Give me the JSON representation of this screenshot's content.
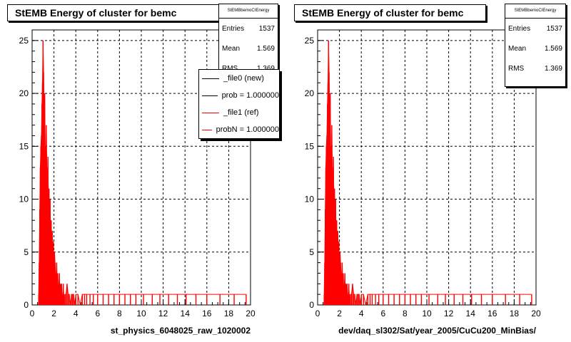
{
  "panels": [
    {
      "title": "StEMB Energy of cluster for bemc",
      "xlabel": "st_physics_6048025_raw_1020002",
      "stats": {
        "name": "StEMBbemoCIEnergy",
        "rows": [
          {
            "label": "Entries",
            "value": "1537"
          },
          {
            "label": "Mean",
            "value": "1.569"
          },
          {
            "label": "RMS",
            "value": "1.369"
          }
        ]
      },
      "legend": [
        {
          "label": "_file0 (new)",
          "color": "#000000"
        },
        {
          "label": "prob = 1.000000",
          "color": "#000000"
        },
        {
          "label": "_file1 (ref)",
          "color": "#ff0000"
        },
        {
          "label": "probN = 1.000000",
          "color": "#ff0000"
        }
      ]
    },
    {
      "title": "StEMB Energy of cluster for bemc",
      "xlabel": "dev/daq_sl302/Sat/year_2005/CuCu200_MinBias/",
      "stats": {
        "name": "StEMBbemoCIEnergy",
        "rows": [
          {
            "label": "Entries",
            "value": "1537"
          },
          {
            "label": "Mean",
            "value": "1.569"
          },
          {
            "label": "RMS",
            "value": "1.369"
          }
        ]
      }
    }
  ],
  "chart_data": [
    {
      "type": "histogram",
      "title": "StEMB Energy of cluster for bemc",
      "xlabel": "st_physics_6048025_raw_1020002",
      "ylabel": "",
      "xlim": [
        0,
        20
      ],
      "ylim": [
        0,
        26
      ],
      "xticks": [
        0,
        2,
        4,
        6,
        8,
        10,
        12,
        14,
        16,
        18,
        20
      ],
      "yticks": [
        0,
        5,
        10,
        15,
        20,
        25
      ],
      "grid": true,
      "line_color": "#ff0000",
      "series": [
        {
          "name": "_file0 (new)",
          "color": "#000000"
        },
        {
          "name": "_file1 (ref)",
          "color": "#ff0000",
          "x": [
            0.6,
            0.65,
            0.7,
            0.75,
            0.8,
            0.85,
            0.9,
            0.95,
            1.0,
            1.05,
            1.1,
            1.15,
            1.2,
            1.25,
            1.3,
            1.35,
            1.4,
            1.45,
            1.5,
            1.55,
            1.6,
            1.65,
            1.7,
            1.75,
            1.8,
            1.85,
            1.9,
            1.95,
            2.0,
            2.05,
            2.1,
            2.15,
            2.2,
            2.25,
            2.3,
            2.35,
            2.4,
            2.45,
            2.5,
            2.55,
            2.6,
            2.65,
            2.7,
            2.75,
            2.8,
            2.85,
            2.9,
            2.95,
            3.0,
            3.1,
            3.2,
            3.3,
            3.4,
            3.5,
            3.6,
            3.7,
            3.8,
            3.9,
            4.0,
            4.2,
            4.4,
            4.6,
            4.8,
            5.0,
            5.3,
            5.6,
            6.0,
            6.5,
            7.0,
            7.5,
            8.0,
            8.5,
            9.0,
            9.5,
            10.2,
            11.0,
            11.7,
            12.5,
            13.3,
            14.1,
            15.0,
            16.0,
            17.2,
            18.5,
            19.6
          ],
          "y": [
            1,
            4,
            9,
            13,
            15,
            16,
            19,
            21,
            25,
            22,
            18,
            20,
            15,
            12,
            17,
            13,
            10,
            14,
            9,
            11,
            7,
            10,
            6,
            8,
            5,
            7,
            4,
            6,
            3,
            5,
            4,
            3,
            2,
            4,
            2,
            3,
            1,
            2,
            3,
            1,
            2,
            1,
            2,
            0,
            1,
            2,
            1,
            0,
            1,
            1,
            2,
            1,
            1,
            0,
            1,
            1,
            1,
            0,
            1,
            1,
            0,
            1,
            1,
            1,
            1,
            1,
            1,
            1,
            1,
            1,
            1,
            1,
            1,
            1,
            1,
            1,
            1,
            1,
            1,
            1,
            1,
            1,
            1,
            1,
            1
          ]
        }
      ]
    },
    {
      "type": "histogram",
      "title": "StEMB Energy of cluster for bemc",
      "xlabel": "dev/daq_sl302/Sat/year_2005/CuCu200_MinBias/",
      "ylabel": "",
      "xlim": [
        0,
        20
      ],
      "ylim": [
        0,
        26
      ],
      "xticks": [
        0,
        2,
        4,
        6,
        8,
        10,
        12,
        14,
        16,
        18,
        20
      ],
      "yticks": [
        0,
        5,
        10,
        15,
        20,
        25
      ],
      "grid": true,
      "line_color": "#ff0000",
      "series": [
        {
          "name": "",
          "color": "#ff0000",
          "x": [
            0.6,
            0.65,
            0.7,
            0.75,
            0.8,
            0.85,
            0.9,
            0.95,
            1.0,
            1.05,
            1.1,
            1.15,
            1.2,
            1.25,
            1.3,
            1.35,
            1.4,
            1.45,
            1.5,
            1.55,
            1.6,
            1.65,
            1.7,
            1.75,
            1.8,
            1.85,
            1.9,
            1.95,
            2.0,
            2.05,
            2.1,
            2.15,
            2.2,
            2.25,
            2.3,
            2.35,
            2.4,
            2.45,
            2.5,
            2.55,
            2.6,
            2.65,
            2.7,
            2.75,
            2.8,
            2.85,
            2.9,
            2.95,
            3.0,
            3.1,
            3.2,
            3.3,
            3.4,
            3.5,
            3.6,
            3.7,
            3.8,
            3.9,
            4.0,
            4.2,
            4.4,
            4.6,
            4.8,
            5.0,
            5.3,
            5.6,
            6.0,
            6.5,
            7.0,
            7.5,
            8.0,
            8.5,
            9.0,
            9.5,
            10.2,
            11.0,
            11.7,
            12.5,
            13.3,
            14.1,
            15.0,
            16.0,
            17.2,
            18.5,
            19.6
          ],
          "y": [
            1,
            4,
            9,
            13,
            15,
            16,
            19,
            21,
            25,
            22,
            18,
            20,
            15,
            12,
            17,
            13,
            10,
            14,
            9,
            11,
            7,
            10,
            6,
            8,
            5,
            7,
            4,
            6,
            3,
            5,
            4,
            3,
            2,
            4,
            2,
            3,
            1,
            2,
            3,
            1,
            2,
            1,
            2,
            0,
            1,
            2,
            1,
            0,
            1,
            1,
            2,
            1,
            1,
            0,
            1,
            1,
            1,
            0,
            1,
            1,
            0,
            1,
            1,
            1,
            1,
            1,
            1,
            1,
            1,
            1,
            1,
            1,
            1,
            1,
            1,
            1,
            1,
            1,
            1,
            1,
            1,
            1,
            1,
            1,
            1
          ]
        }
      ]
    }
  ]
}
